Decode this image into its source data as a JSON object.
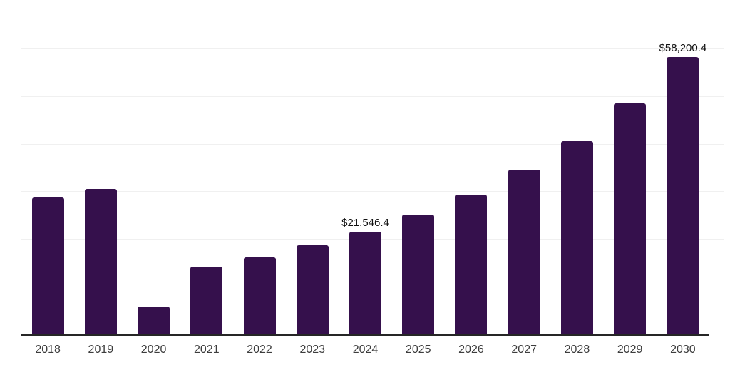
{
  "chart_data": {
    "type": "bar",
    "title": "",
    "subtitle": "",
    "xlabel": "",
    "ylabel": "",
    "categories": [
      "2018",
      "2019",
      "2020",
      "2021",
      "2022",
      "2023",
      "2024",
      "2025",
      "2026",
      "2027",
      "2028",
      "2029",
      "2030"
    ],
    "values": [
      28650,
      30450,
      5820,
      14180,
      16120,
      18650,
      21546.4,
      25070,
      29250,
      34480,
      40600,
      48500,
      58200.4
    ],
    "data_labels": {
      "2024": "$21,546.4",
      "2030": "$58,200.4"
    },
    "ylim": [
      0,
      70000
    ],
    "y_step": 10000,
    "grid": "horizontal-only",
    "y_axis_tick_labels": "none",
    "legend": "none"
  },
  "colors": {
    "background": "#ffffff",
    "bar": "#35104c",
    "gridline": "#f0f0f0",
    "axis_line": "#262626",
    "tick_label": "#3d3d3d",
    "data_label": "#111111"
  }
}
